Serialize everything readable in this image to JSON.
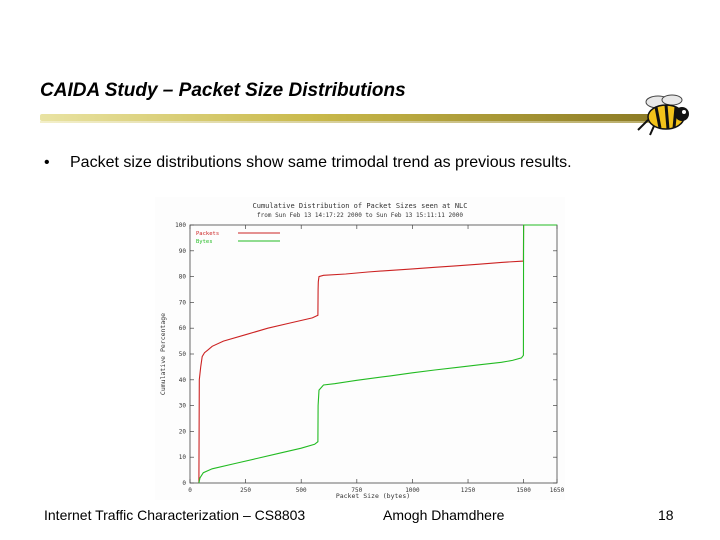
{
  "slide": {
    "title": "CAIDA Study – Packet Size Distributions",
    "bullet_symbol": "•",
    "bullet": "Packet size distributions show same trimodal trend as previous results.",
    "mascot_icon": "yellow-jacket-bee-icon"
  },
  "footer": {
    "left": "Internet Traffic Characterization – CS8803",
    "center": "Amogh Dhamdhere",
    "page_number": "18"
  },
  "chart_data": {
    "type": "line",
    "title": "Cumulative Distribution of Packet Sizes seen at NLC",
    "subtitle": "from Sun Feb 13 14:17:22 2000 to Sun Feb 13 15:11:11 2000",
    "xlabel": "Packet Size (bytes)",
    "ylabel": "Cumulative Percentage",
    "xlim": [
      0,
      1650
    ],
    "ylim": [
      0,
      100
    ],
    "x_ticks": [
      0,
      250,
      500,
      750,
      1000,
      1250,
      1500,
      1650
    ],
    "y_ticks": [
      0,
      10,
      20,
      30,
      40,
      50,
      60,
      70,
      80,
      90,
      100
    ],
    "grid": false,
    "legend_position": "top-left",
    "colors": {
      "Packets": "#cc2222",
      "Bytes": "#22bb22"
    },
    "series": [
      {
        "name": "Packets",
        "x": [
          40,
          42,
          48,
          55,
          65,
          80,
          100,
          150,
          250,
          350,
          450,
          550,
          575,
          576,
          577,
          580,
          600,
          700,
          800,
          900,
          1000,
          1100,
          1200,
          1300,
          1400,
          1499,
          1500,
          1650
        ],
        "y": [
          0,
          40,
          45,
          49,
          50.5,
          51.5,
          53,
          55,
          57.5,
          60,
          62,
          64,
          65,
          75,
          78,
          80,
          80.5,
          81,
          81.8,
          82.4,
          83,
          83.6,
          84.2,
          84.8,
          85.5,
          86,
          100,
          100
        ]
      },
      {
        "name": "Bytes",
        "x": [
          40,
          45,
          60,
          100,
          200,
          300,
          400,
          500,
          560,
          575,
          576,
          580,
          600,
          650,
          750,
          900,
          1000,
          1100,
          1200,
          1300,
          1400,
          1450,
          1490,
          1499,
          1500,
          1650
        ],
        "y": [
          0,
          2,
          4,
          5.5,
          7.5,
          9.5,
          11.5,
          13.5,
          15,
          16,
          30,
          36,
          38,
          38.5,
          39.8,
          41.5,
          42.7,
          43.8,
          44.8,
          45.8,
          46.8,
          47.5,
          48.5,
          49.5,
          100,
          100
        ]
      }
    ]
  }
}
